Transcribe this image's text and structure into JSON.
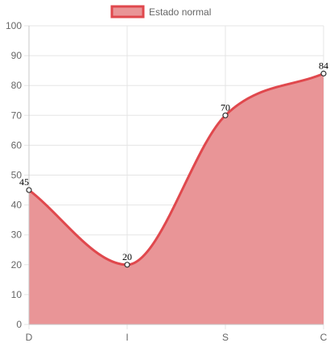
{
  "chart_data": {
    "type": "area",
    "categories": [
      "D",
      "I",
      "S",
      "C"
    ],
    "series": [
      {
        "name": "Estado normal",
        "values": [
          45,
          20,
          70,
          84
        ]
      }
    ],
    "ylim": [
      0,
      100
    ],
    "y_ticks": [
      0,
      10,
      20,
      30,
      40,
      50,
      60,
      70,
      80,
      90,
      100
    ],
    "grid": true,
    "legend_position": "top",
    "show_data_labels": true,
    "colors": {
      "line": "#e0484d",
      "fill": "#e99597",
      "grid": "#e5e5e5",
      "axis": "#c8c8c8",
      "point_fill": "#ffffff",
      "point_stroke": "#333333"
    }
  }
}
